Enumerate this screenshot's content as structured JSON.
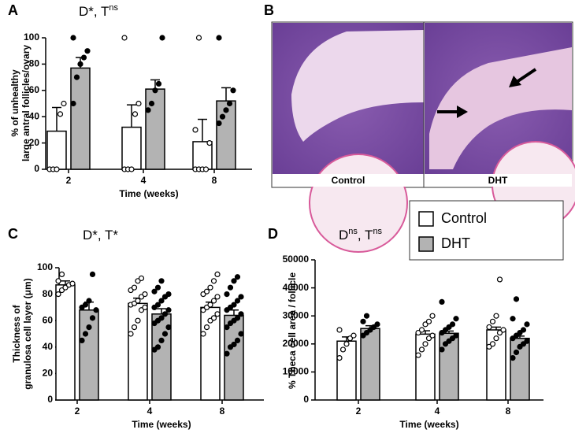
{
  "chart_data": [
    {
      "type": "bar",
      "panel": "A",
      "title": [
        "D*, T",
        "ns"
      ],
      "ylabel": [
        "% of unhealthy",
        "large antral follicles/ovary"
      ],
      "xlabel": "Time (weeks)",
      "categories": [
        "2",
        "4",
        "8"
      ],
      "ylim": [
        0,
        100
      ],
      "yticks": [
        0,
        20,
        40,
        60,
        80,
        100
      ],
      "series": [
        {
          "name": "Control",
          "color": "#ffffff",
          "values": [
            29,
            32,
            21
          ],
          "errors": [
            18,
            17,
            17
          ],
          "points": [
            [
              0,
              0,
              0,
              42,
              50
            ],
            [
              0,
              0,
              0,
              42,
              50,
              100
            ],
            [
              0,
              0,
              0,
              0,
              20,
              30,
              100
            ]
          ]
        },
        {
          "name": "DHT",
          "color": "#b3b3b3",
          "values": [
            77,
            61,
            52
          ],
          "errors": [
            8,
            7,
            10
          ],
          "points": [
            [
              50,
              70,
              80,
              85,
              90,
              100
            ],
            [
              45,
              50,
              60,
              65,
              100
            ],
            [
              35,
              40,
              45,
              50,
              60,
              100
            ]
          ]
        }
      ]
    },
    {
      "type": "bar",
      "panel": "C",
      "title": [
        "D*, T*"
      ],
      "ylabel": [
        "Thickness of",
        "granulosa cell layer (μm)"
      ],
      "xlabel": "Time (weeks)",
      "categories": [
        "2",
        "4",
        "8"
      ],
      "ylim": [
        0,
        100
      ],
      "yticks": [
        0,
        20,
        40,
        60,
        80,
        100
      ],
      "series": [
        {
          "name": "Control",
          "color": "#ffffff",
          "values": [
            87,
            73,
            70
          ],
          "errors": [
            3,
            4,
            4
          ],
          "points": [
            [
              80,
              83,
              85,
              87,
              88,
              90,
              95
            ],
            [
              50,
              55,
              60,
              68,
              70,
              72,
              73,
              75,
              78,
              80,
              83,
              85,
              90,
              92
            ],
            [
              50,
              55,
              60,
              62,
              65,
              68,
              70,
              72,
              75,
              78,
              80,
              82,
              85,
              90,
              95
            ]
          ]
        },
        {
          "name": "DHT",
          "color": "#b3b3b3",
          "values": [
            68,
            65,
            64
          ],
          "errors": [
            6,
            4,
            4
          ],
          "points": [
            [
              45,
              50,
              55,
              62,
              68,
              70,
              72,
              75,
              95
            ],
            [
              38,
              40,
              45,
              50,
              55,
              58,
              60,
              62,
              65,
              68,
              70,
              72,
              75,
              78,
              80,
              82,
              85,
              90
            ],
            [
              35,
              40,
              42,
              45,
              50,
              55,
              58,
              60,
              62,
              65,
              68,
              70,
              72,
              75,
              78,
              80,
              85,
              90,
              93
            ]
          ]
        }
      ]
    },
    {
      "type": "bar",
      "panel": "D",
      "title": [
        "D",
        "ns",
        ", T",
        "ns"
      ],
      "ylabel": [
        "% Theca cell area / follicle"
      ],
      "xlabel": "Time (weeks)",
      "categories": [
        "2",
        "4",
        "8"
      ],
      "ylim": [
        0,
        50000
      ],
      "yticks": [
        0,
        10000,
        20000,
        30000,
        40000,
        50000
      ],
      "legend": "top-right",
      "series": [
        {
          "name": "Control",
          "color": "#ffffff",
          "values": [
            21000,
            23500,
            25000
          ],
          "errors": [
            1500,
            1200,
            1000
          ],
          "points": [
            [
              15000,
              18000,
              20000,
              22000,
              23000,
              25000
            ],
            [
              16000,
              18000,
              20000,
              22000,
              23000,
              24000,
              25000,
              27000,
              28000,
              30000
            ],
            [
              19000,
              20000,
              22000,
              24000,
              25000,
              26000,
              28000,
              30000,
              43000
            ]
          ]
        },
        {
          "name": "DHT",
          "color": "#b3b3b3",
          "values": [
            25500,
            23800,
            22000
          ],
          "errors": [
            1000,
            800,
            800
          ],
          "points": [
            [
              23000,
              24000,
              25000,
              26000,
              27000,
              28000,
              30000
            ],
            [
              18000,
              20000,
              21000,
              22000,
              23000,
              24000,
              25000,
              26000,
              27000,
              29000,
              35000
            ],
            [
              15000,
              17000,
              19000,
              20000,
              21000,
              22000,
              23000,
              24000,
              25000,
              27000,
              29000,
              36000
            ]
          ]
        }
      ]
    }
  ],
  "image_panel": {
    "label": "B",
    "captions": [
      "Control",
      "DHT"
    ]
  }
}
